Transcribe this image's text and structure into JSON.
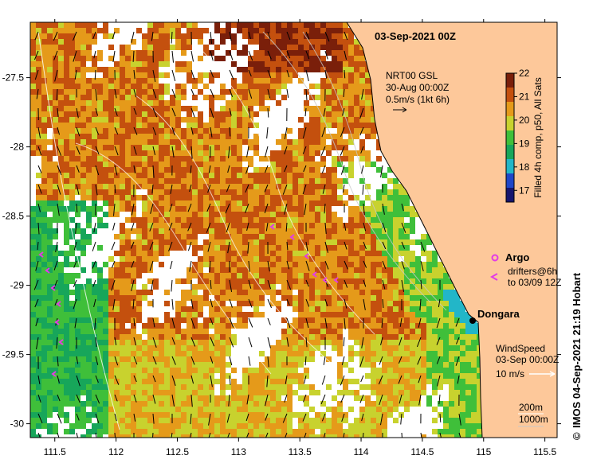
{
  "title": "03-Sep-2021 00Z",
  "axes": {
    "lon_ticks": [
      "111.5",
      "112",
      "112.5",
      "113",
      "113.5",
      "114",
      "114.5",
      "115",
      "115.5"
    ],
    "lat_ticks": [
      "-27.5",
      "-28",
      "-28.5",
      "-29",
      "-29.5",
      "-30"
    ],
    "lon_range": [
      111.3,
      115.6
    ],
    "lat_range": [
      -27.1,
      -30.1
    ]
  },
  "current_legend": {
    "line1": "NRT00 GSL",
    "line2": "30-Aug 00:00Z",
    "line3": "0.5m/s (1kt 6h)"
  },
  "colorbar": {
    "label": "Filled 4h comp, p50, All Sats",
    "ticks": [
      "22",
      "21",
      "20",
      "19",
      "18",
      "17"
    ],
    "colors": [
      "#7a1f0a",
      "#c4500e",
      "#e59a1a",
      "#c8d22e",
      "#3fbf3a",
      "#17a65a",
      "#22b6c8",
      "#1f46c8",
      "#15156e"
    ]
  },
  "argo_legend": {
    "label": "Argo",
    "color": "#e23be6"
  },
  "drifter_legend": {
    "line1": "drifters@6h",
    "line2": "to 03/09 12Z"
  },
  "place": {
    "name": "Dongara"
  },
  "wind_legend": {
    "line1": "WindSpeed",
    "line2": "03-Sep 00:00Z",
    "line3": "10 m/s"
  },
  "depth_legend": {
    "line1": "200m",
    "line2": "1000m"
  },
  "credit": "IMOS 04-Sep-2021 21:19 Hobart",
  "copyright_symbol": "©",
  "palette": {
    "land": "#fdc89a",
    "cloud": "#ffffff",
    "frame": "#000000"
  }
}
